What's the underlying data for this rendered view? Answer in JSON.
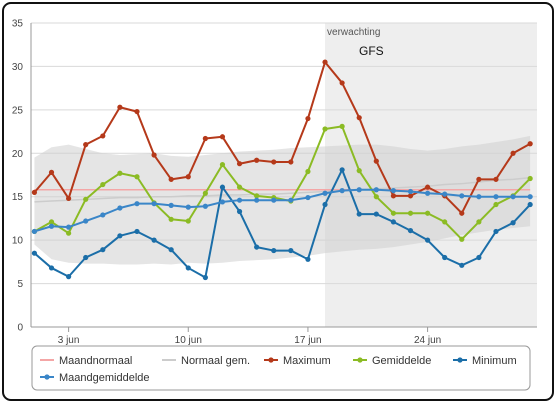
{
  "chart_data": {
    "type": "line",
    "x": [
      1,
      2,
      3,
      4,
      5,
      6,
      7,
      8,
      9,
      10,
      11,
      12,
      13,
      14,
      15,
      16,
      17,
      18,
      19,
      20,
      21,
      22,
      23,
      24,
      25,
      26,
      27,
      28,
      29,
      30
    ],
    "x_tick_labels": [
      "3 jun",
      "10 jun",
      "17 jun",
      "24 jun"
    ],
    "x_tick_positions": [
      3,
      10,
      17,
      24
    ],
    "xlim": [
      0.8,
      30.4
    ],
    "ylim": [
      0,
      35
    ],
    "y_ticks": [
      0,
      5,
      10,
      15,
      20,
      25,
      30,
      35
    ],
    "grid": true,
    "forecast_start": 18.0,
    "forecast_label": "verwachting",
    "forecast_model": "GFS",
    "band": {
      "lower": [
        9.5,
        7.8,
        7.4,
        7.3,
        7.3,
        7.2,
        7.2,
        7.3,
        7.2,
        7.4,
        7.3,
        7.4,
        7.6,
        7.7,
        7.8,
        8.0,
        8.2,
        8.5,
        8.7,
        8.9,
        9.0,
        9.2,
        9.5,
        9.8,
        10.2,
        10.6,
        10.9,
        11.2,
        11.4,
        11.6
      ],
      "upper": [
        19.5,
        20.7,
        21.0,
        20.5,
        20.0,
        19.8,
        19.9,
        20.0,
        19.7,
        19.6,
        19.8,
        20.0,
        20.2,
        20.3,
        20.4,
        20.6,
        20.7,
        20.8,
        20.9,
        21.0,
        21.0,
        20.8,
        20.5,
        20.3,
        20.5,
        20.8,
        21.0,
        21.3,
        21.6,
        22.0
      ]
    },
    "series": [
      {
        "name": "Maandnormaal",
        "color": "#f4a6a6",
        "marker": false,
        "values": [
          15.8,
          15.8,
          15.8,
          15.8,
          15.8,
          15.8,
          15.8,
          15.8,
          15.8,
          15.8,
          15.8,
          15.8,
          15.8,
          15.8,
          15.8,
          15.8,
          15.8,
          15.8,
          15.8,
          15.8,
          15.8,
          15.8,
          15.8,
          15.8,
          15.8,
          15.8,
          15.8,
          15.8,
          15.8,
          15.8
        ]
      },
      {
        "name": "Normaal gem.",
        "color": "#cccccc",
        "marker": false,
        "values": [
          14.4,
          14.5,
          14.6,
          14.7,
          14.8,
          14.9,
          14.9,
          15.0,
          15.0,
          15.1,
          15.1,
          15.2,
          15.2,
          15.3,
          15.3,
          15.4,
          15.5,
          15.6,
          15.7,
          15.8,
          15.9,
          16.0,
          16.1,
          16.2,
          16.4,
          16.5,
          16.7,
          16.9,
          17.0,
          17.2
        ]
      },
      {
        "name": "Maximum",
        "color": "#b5391a",
        "marker": true,
        "values": [
          15.5,
          17.8,
          14.8,
          21.0,
          22.0,
          25.3,
          24.8,
          19.8,
          17.0,
          17.3,
          21.7,
          21.9,
          18.8,
          19.2,
          19.0,
          19.0,
          24.0,
          30.5,
          28.1,
          24.1,
          19.1,
          15.1,
          15.1,
          16.1,
          15.1,
          13.1,
          17.0,
          17.0,
          20.0,
          21.1
        ]
      },
      {
        "name": "Gemiddelde",
        "color": "#8bbb24",
        "marker": true,
        "values": [
          11.0,
          12.1,
          10.8,
          14.7,
          16.4,
          17.7,
          17.3,
          14.3,
          12.4,
          12.2,
          15.4,
          18.7,
          16.1,
          15.1,
          14.9,
          14.5,
          17.9,
          22.8,
          23.1,
          18.0,
          15.0,
          13.1,
          13.1,
          13.1,
          12.1,
          10.1,
          12.1,
          14.1,
          15.1,
          17.1
        ]
      },
      {
        "name": "Minimum",
        "color": "#1b6ea8",
        "marker": true,
        "values": [
          8.5,
          6.8,
          5.8,
          8.0,
          8.9,
          10.5,
          11.0,
          10.0,
          8.9,
          6.8,
          5.7,
          16.1,
          13.3,
          9.2,
          8.8,
          8.8,
          7.8,
          14.1,
          18.1,
          13.0,
          13.0,
          12.1,
          11.1,
          10.0,
          8.0,
          7.1,
          8.0,
          11.0,
          12.0,
          14.1
        ]
      },
      {
        "name": "Maandgemiddelde",
        "color": "#3a86c8",
        "marker": true,
        "values": [
          11.0,
          11.6,
          11.5,
          12.2,
          12.9,
          13.7,
          14.2,
          14.2,
          14.0,
          13.8,
          13.9,
          14.4,
          14.6,
          14.6,
          14.6,
          14.6,
          14.9,
          15.4,
          15.7,
          15.8,
          15.8,
          15.7,
          15.6,
          15.4,
          15.3,
          15.1,
          15.0,
          15.0,
          15.0,
          15.0
        ]
      }
    ],
    "legend_placement": "bottom"
  }
}
